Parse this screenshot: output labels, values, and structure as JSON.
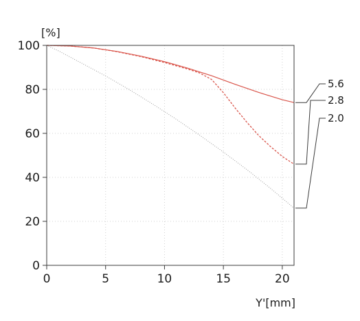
{
  "chart_data": {
    "type": "line",
    "title": "",
    "xlabel": "Y'[mm]",
    "ylabel": "[%]",
    "xlim": [
      0,
      21
    ],
    "ylim": [
      0,
      100
    ],
    "x_ticks": [
      0,
      5,
      10,
      15,
      20
    ],
    "x_tick_labels": [
      "0",
      "5",
      "10",
      "15",
      "20"
    ],
    "y_ticks": [
      0,
      20,
      40,
      60,
      80,
      100
    ],
    "y_tick_labels": [
      "0",
      "20",
      "40",
      "60",
      "80",
      "100"
    ],
    "grid": true,
    "legend_placement": "right",
    "series": [
      {
        "name": "5.6",
        "style": "solid",
        "color": "#d9544a",
        "x": [
          0,
          2,
          4,
          6,
          8,
          10,
          12,
          14,
          16,
          18,
          20,
          21
        ],
        "y": [
          100,
          99.7,
          98.8,
          97.2,
          95.1,
          92.6,
          89.6,
          86.2,
          82.3,
          78.6,
          75.3,
          74
        ]
      },
      {
        "name": "2.8",
        "style": "dashed",
        "color": "#d9544a",
        "x": [
          0,
          2,
          4,
          6,
          8,
          10,
          12,
          13,
          14,
          15,
          16,
          17,
          18,
          19,
          20,
          21
        ],
        "y": [
          100,
          99.7,
          98.8,
          97.1,
          94.9,
          92.2,
          89.2,
          87.4,
          84.5,
          78.5,
          71.5,
          65,
          59,
          54,
          49.5,
          46
        ]
      },
      {
        "name": "2.0",
        "style": "dotted",
        "color": "#9a9a9a",
        "x": [
          0,
          1,
          3,
          5,
          7,
          9,
          11,
          13,
          15,
          17,
          19,
          21
        ],
        "y": [
          100,
          97.5,
          91.8,
          86.1,
          79.9,
          73.3,
          66.4,
          59.1,
          51.5,
          43.5,
          35,
          26
        ]
      }
    ]
  }
}
